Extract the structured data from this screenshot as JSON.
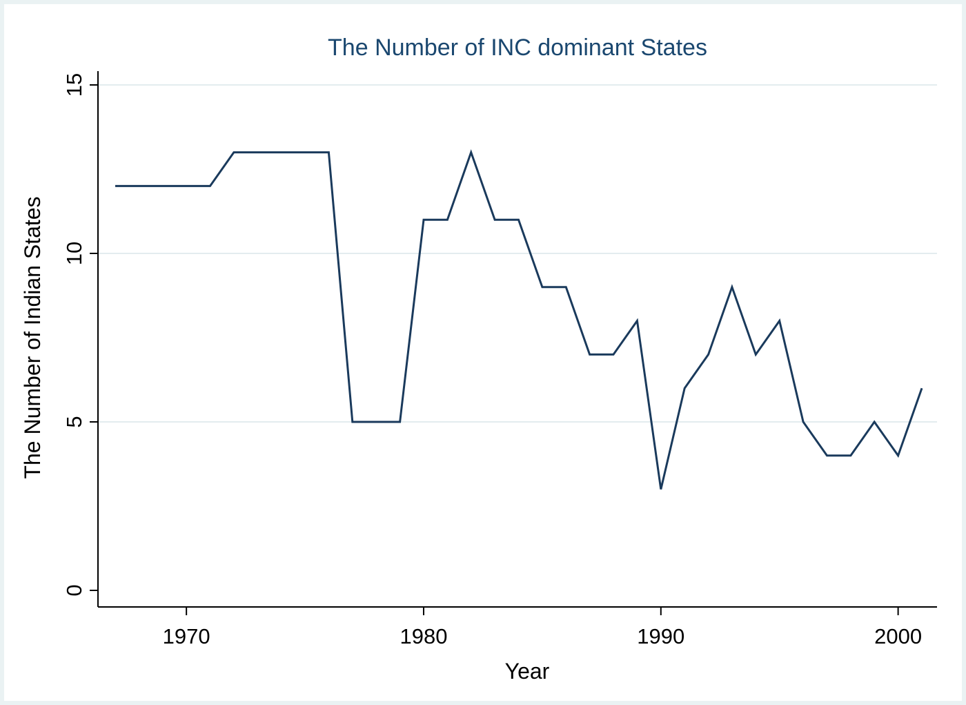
{
  "chart_data": {
    "type": "line",
    "title": "The Number of INC dominant States",
    "xlabel": "Year",
    "ylabel": "The Number of Indian States",
    "xlim": [
      1967,
      2001
    ],
    "ylim": [
      0,
      15
    ],
    "x_ticks": [
      1970,
      1980,
      1990,
      2000
    ],
    "y_ticks": [
      0,
      5,
      10,
      15
    ],
    "grid": "horizontal",
    "legend": "none",
    "colors": {
      "line": "#1a3a5c",
      "background": "#eaf2f3",
      "plot_background": "#ffffff",
      "grid": "#e3ecef",
      "title": "#1a476f"
    },
    "series": [
      {
        "x": [
          1967,
          1968,
          1969,
          1970,
          1971,
          1972,
          1973,
          1974,
          1975,
          1976,
          1977,
          1978,
          1979,
          1980,
          1981,
          1982,
          1983,
          1984,
          1985,
          1986,
          1987,
          1988,
          1989,
          1990,
          1991,
          1992,
          1993,
          1994,
          1995,
          1996,
          1997,
          1998,
          1999,
          2000,
          2001
        ],
        "values": [
          12,
          12,
          12,
          12,
          12,
          13,
          13,
          13,
          13,
          13,
          5,
          5,
          5,
          11,
          11,
          13,
          11,
          11,
          9,
          9,
          7,
          7,
          8,
          3,
          6,
          7,
          9,
          7,
          8,
          5,
          4,
          4,
          5,
          4,
          6
        ]
      }
    ]
  }
}
